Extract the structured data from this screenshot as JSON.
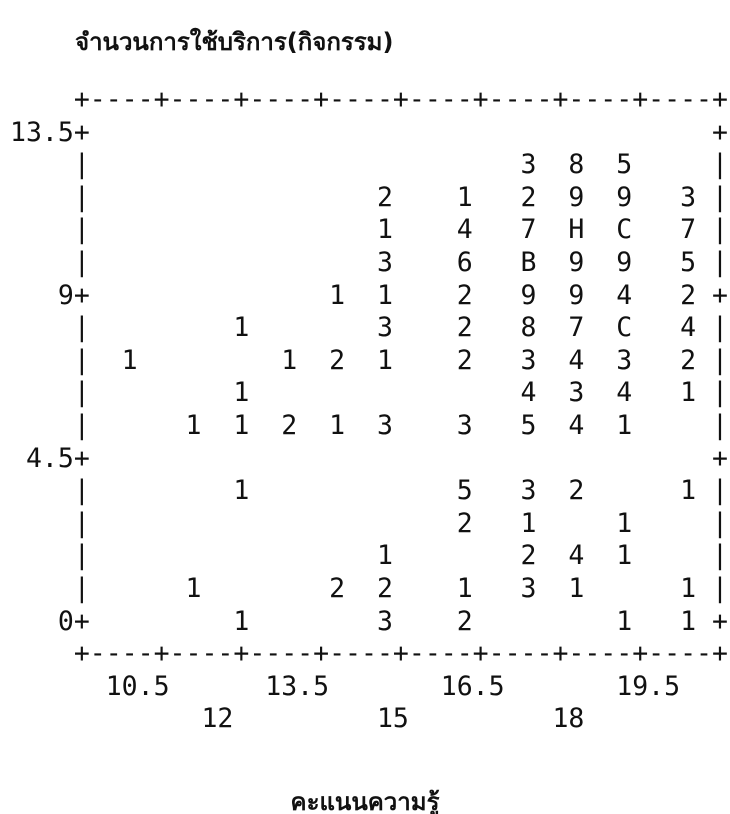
{
  "title": "จำนวนการใช้บริการ(กิจกรรม)",
  "plot_lines": [
    "    +----+----+----+----+----+----+----+----+",
    "13.5+                                       +",
    "    |                           3  8  5     |",
    "    |                  2    1   2  9  9   3 |",
    "    |                  1    4   7  H  C   7 |",
    "    |                  3    6   B  9  9   5 |",
    "   9+               1  1    2   9  9  4   2 +",
    "    |         1        3    2   8  7  C   4 |",
    "    |  1         1  2  1    2   3  4  3   2 |",
    "    |         1                 4  3  4   1 |",
    "    |      1  1  2  1  3    3   5  4  1     |",
    " 4.5+                                       +",
    "    |         1             5   3  2      1 |",
    "    |                       2   1     1     |",
    "    |                  1        2  4  1     |",
    "    |      1        2  2    1   3  1      1 |",
    "   0+         1        3    2         1   1 +",
    "    +----+----+----+----+----+----+----+----+",
    "      10.5      13.5       16.5       19.5",
    "            12         15         18"
  ],
  "x_axis_title": "คะแนนความรู้"
}
